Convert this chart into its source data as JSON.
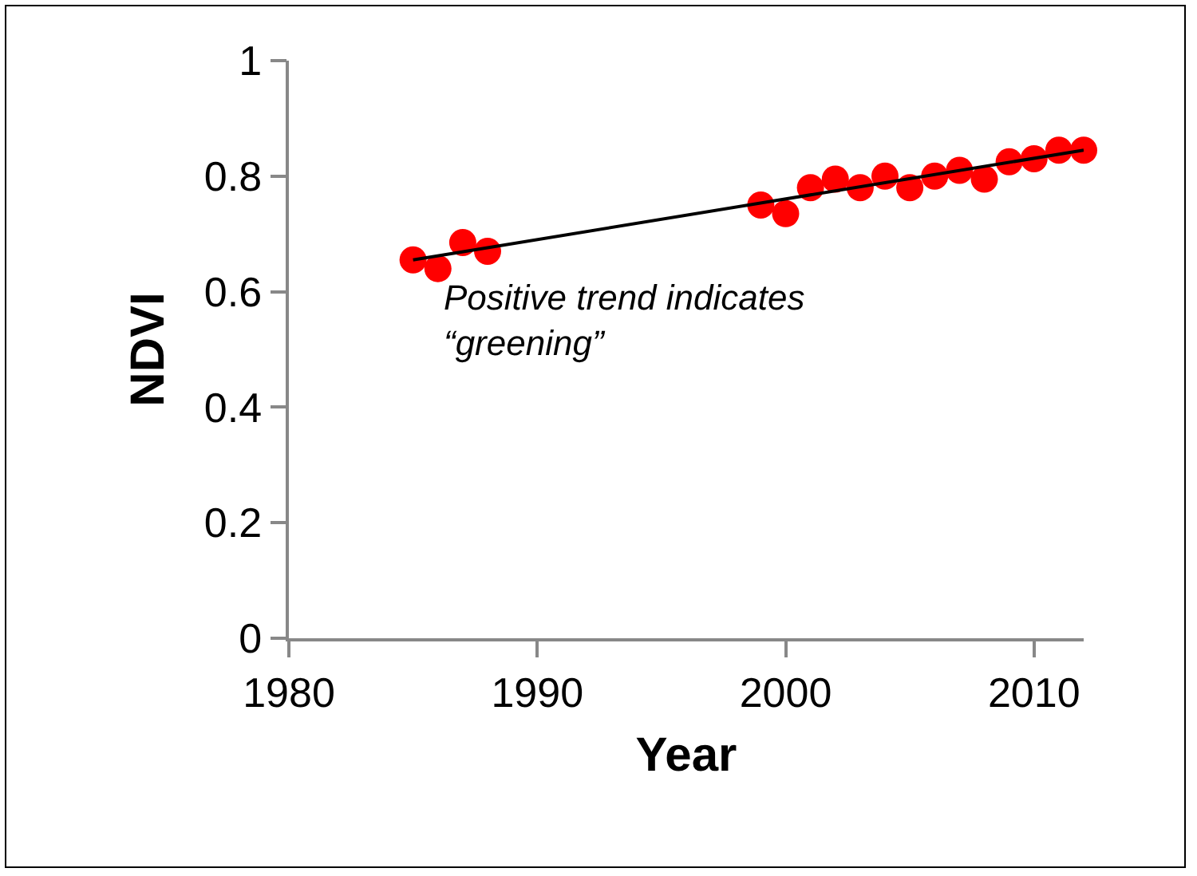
{
  "chart_data": {
    "type": "scatter",
    "xlabel": "Year",
    "ylabel": "NDVI",
    "grid": false,
    "xlim": [
      1980,
      2012
    ],
    "xticks": [
      1980,
      1990,
      2000,
      2010
    ],
    "ylim": [
      0,
      1
    ],
    "yticks": [
      0,
      0.2,
      0.4,
      0.6,
      0.8,
      1
    ],
    "x": [
      1985,
      1986,
      1987,
      1988,
      1999,
      2000,
      2001,
      2002,
      2003,
      2004,
      2005,
      2006,
      2007,
      2008,
      2009,
      2010,
      2011,
      2012
    ],
    "series": [
      {
        "marker": "circle",
        "color": "#ff0000",
        "values": [
          0.655,
          0.64,
          0.685,
          0.67,
          0.75,
          0.735,
          0.78,
          0.795,
          0.78,
          0.8,
          0.78,
          0.8,
          0.81,
          0.795,
          0.825,
          0.83,
          0.845,
          0.845
        ]
      },
      {
        "type": "line",
        "marker": "none",
        "color": "#000000",
        "x": [
          1985,
          2012
        ],
        "values": [
          0.655,
          0.845
        ]
      }
    ],
    "annotations": [
      "Positive trend indicates\n“greening”"
    ]
  }
}
